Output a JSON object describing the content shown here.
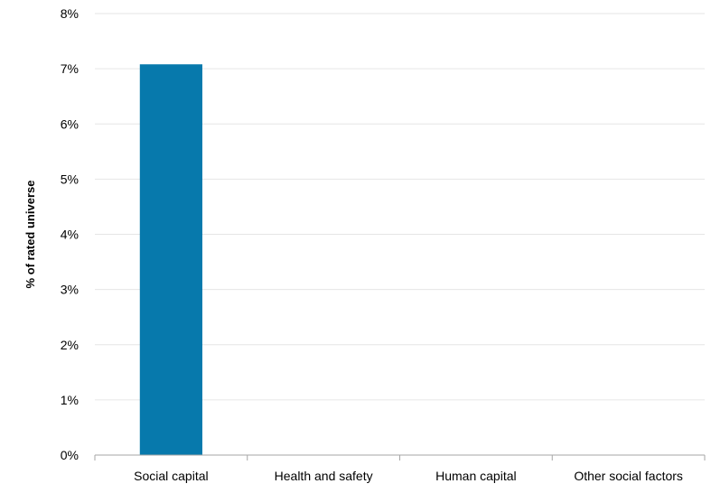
{
  "chart_data": {
    "type": "bar",
    "title": "",
    "xlabel": "",
    "ylabel": "% of rated universe",
    "categories": [
      "Social capital",
      "Health and safety",
      "Human capital",
      "Other social factors"
    ],
    "values": [
      7.08,
      0,
      0,
      0
    ],
    "ylim": [
      0,
      8
    ],
    "yticks": [
      0,
      1,
      2,
      3,
      4,
      5,
      6,
      7,
      8
    ],
    "ytick_labels": [
      "0%",
      "1%",
      "2%",
      "3%",
      "4%",
      "5%",
      "6%",
      "7%",
      "8%"
    ],
    "grid": true,
    "legend": "none",
    "colors": {
      "bar": "#0779AC",
      "grid": "#E6E6E6",
      "axis": "#A6A6A6",
      "text": "#000000"
    }
  }
}
